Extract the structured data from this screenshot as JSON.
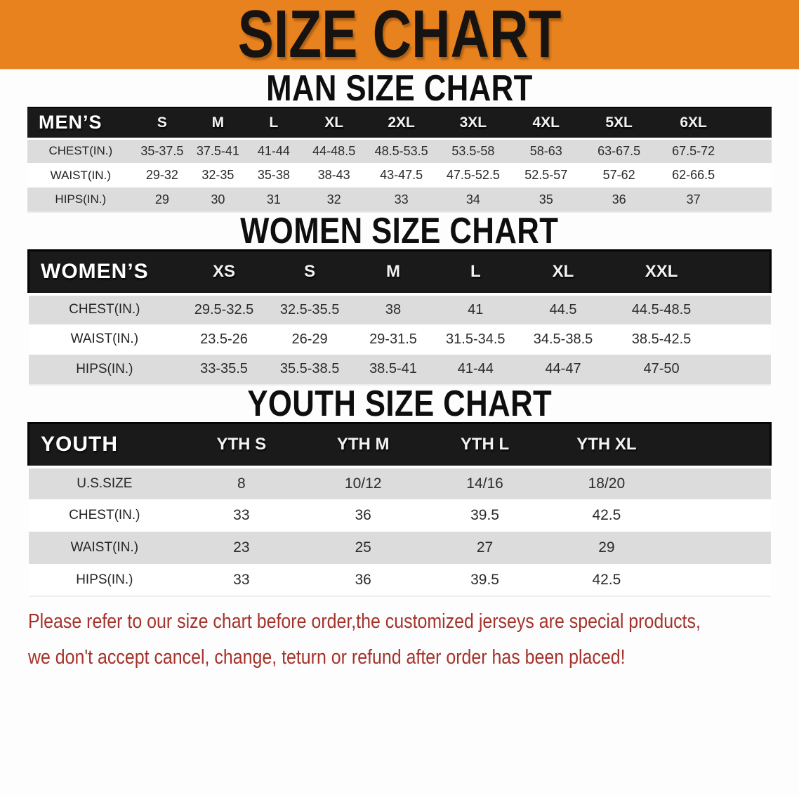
{
  "banner": {
    "title": "SIZE CHART",
    "bg": "#E8821E"
  },
  "sections": [
    {
      "heading": "MAN SIZE CHART",
      "header_label": "MEN’S",
      "columns": [
        "S",
        "M",
        "L",
        "XL",
        "2XL",
        "3XL",
        "4XL",
        "5XL",
        "6XL"
      ],
      "rows": [
        {
          "label": "CHEST(IN.)",
          "values": [
            "35-37.5",
            "37.5-41",
            "41-44",
            "44-48.5",
            "48.5-53.5",
            "53.5-58",
            "58-63",
            "63-67.5",
            "67.5-72"
          ]
        },
        {
          "label": "WAIST(IN.)",
          "values": [
            "29-32",
            "32-35",
            "35-38",
            "38-43",
            "43-47.5",
            "47.5-52.5",
            "52.5-57",
            "57-62",
            "62-66.5"
          ]
        },
        {
          "label": "HIPS(IN.)",
          "values": [
            "29",
            "30",
            "31",
            "32",
            "33",
            "34",
            "35",
            "36",
            "37"
          ]
        }
      ]
    },
    {
      "heading": "WOMEN SIZE CHART",
      "header_label": "WOMEN’S",
      "columns": [
        "XS",
        "S",
        "M",
        "L",
        "XL",
        "XXL"
      ],
      "rows": [
        {
          "label": "CHEST(IN.)",
          "values": [
            "29.5-32.5",
            "32.5-35.5",
            "38",
            "41",
            "44.5",
            "44.5-48.5"
          ]
        },
        {
          "label": "WAIST(IN.)",
          "values": [
            "23.5-26",
            "26-29",
            "29-31.5",
            "31.5-34.5",
            "34.5-38.5",
            "38.5-42.5"
          ]
        },
        {
          "label": "HIPS(IN.)",
          "values": [
            "33-35.5",
            "35.5-38.5",
            "38.5-41",
            "41-44",
            "44-47",
            "47-50"
          ]
        }
      ]
    },
    {
      "heading": "YOUTH SIZE CHART",
      "header_label": "YOUTH",
      "columns": [
        "YTH S",
        "YTH M",
        "YTH L",
        "YTH XL"
      ],
      "rows": [
        {
          "label": "U.S.SIZE",
          "values": [
            "8",
            "10/12",
            "14/16",
            "18/20"
          ]
        },
        {
          "label": "CHEST(IN.)",
          "values": [
            "33",
            "36",
            "39.5",
            "42.5"
          ]
        },
        {
          "label": "WAIST(IN.)",
          "values": [
            "23",
            "25",
            "27",
            "29"
          ]
        },
        {
          "label": "HIPS(IN.)",
          "values": [
            "33",
            "36",
            "39.5",
            "42.5"
          ]
        }
      ]
    }
  ],
  "footer": {
    "line1": "Please refer to our size chart before order,the customized jerseys are special products,",
    "line2": "we don't accept cancel, change, teturn or refund after order has been placed!",
    "color": "#A5322B"
  }
}
